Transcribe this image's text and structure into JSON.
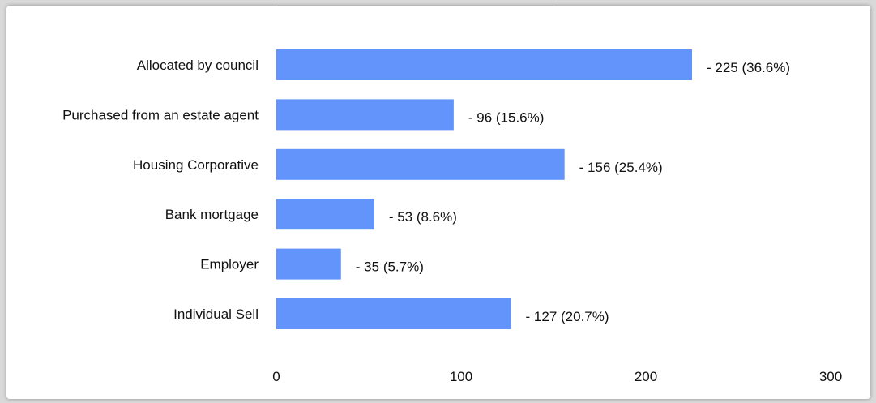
{
  "chart_data": {
    "type": "bar",
    "orientation": "horizontal",
    "categories": [
      "Allocated by council",
      "Purchased from an estate agent",
      "Housing Corporative",
      "Bank mortgage",
      "Employer",
      "Individual Sell"
    ],
    "values": [
      225,
      96,
      156,
      53,
      35,
      127
    ],
    "data_labels": [
      "- 225 (36.6%)",
      "- 96 (15.6%)",
      "- 156 (25.4%)",
      "-  53 (8.6%)",
      "- 35 (5.7%)",
      "- 127 (20.7%)"
    ],
    "xlim": [
      0,
      300
    ],
    "xticks": [
      "0",
      "100",
      "200",
      "300"
    ],
    "grid": false,
    "bar_color": "#6294fc"
  }
}
